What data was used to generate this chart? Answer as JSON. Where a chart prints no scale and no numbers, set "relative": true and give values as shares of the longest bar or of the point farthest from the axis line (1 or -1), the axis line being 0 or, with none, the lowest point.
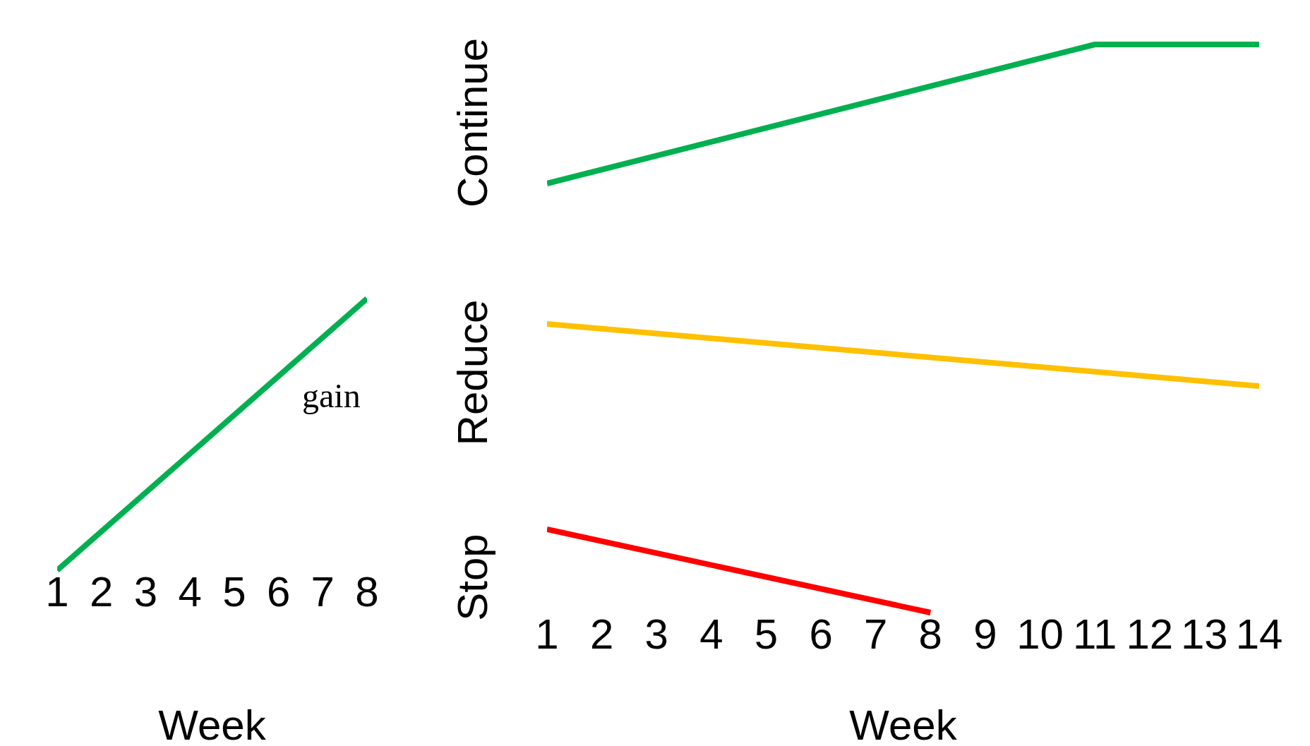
{
  "chart_data": [
    {
      "type": "line",
      "relative": true,
      "xlabel": "Week",
      "x": [
        1,
        8
      ],
      "xlim": [
        1,
        8
      ],
      "xticks": [
        1,
        2,
        3,
        4,
        5,
        6,
        7,
        8
      ],
      "tick_labels": "x",
      "annotations": [
        "gain"
      ],
      "series": [
        {
          "color": "#00b050",
          "values": [
            0,
            1
          ]
        }
      ]
    },
    {
      "type": "line",
      "relative": true,
      "ylabel": "Continue",
      "x": [
        1,
        11,
        14
      ],
      "xlim": [
        1,
        14
      ],
      "tick_labels": false,
      "series": [
        {
          "color": "#00b050",
          "values": [
            0,
            1,
            1
          ]
        }
      ]
    },
    {
      "type": "line",
      "relative": true,
      "ylabel": "Reduce",
      "x": [
        1,
        14
      ],
      "xlim": [
        1,
        14
      ],
      "tick_labels": false,
      "series": [
        {
          "color": "#ffc000",
          "values": [
            1,
            0
          ]
        }
      ]
    },
    {
      "type": "line",
      "relative": true,
      "ylabel": "Stop",
      "xlabel": "Week",
      "x": [
        1,
        8
      ],
      "xlim": [
        1,
        14
      ],
      "xticks": [
        1,
        2,
        3,
        4,
        5,
        6,
        7,
        8,
        9,
        10,
        11,
        12,
        13,
        14
      ],
      "tick_labels": "x",
      "series": [
        {
          "color": "#ff0000",
          "values": [
            1,
            0
          ]
        }
      ]
    }
  ]
}
